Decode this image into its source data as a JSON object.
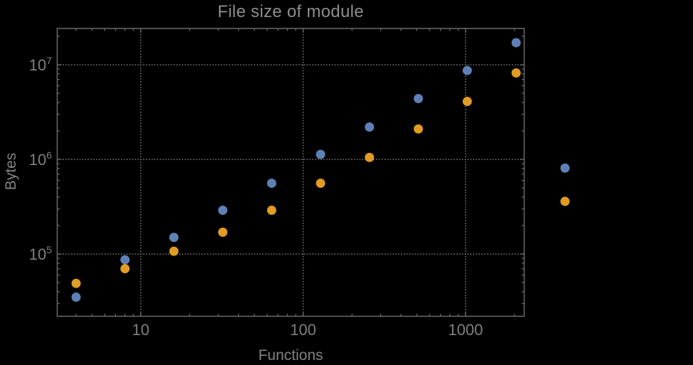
{
  "title": "File size of module",
  "colors": {
    "background": "#000000",
    "frame": "#6b6b6b",
    "grid": "#6b6b6b",
    "tick_text": "#7f7f7f",
    "series_blue": "#5e81b5",
    "series_orange": "#e19c24"
  },
  "chart_data": {
    "type": "scatter",
    "title": "File size of module",
    "xlabel": "Functions",
    "ylabel": "Bytes",
    "xscale": "log",
    "yscale": "log",
    "xlim": [
      3.06,
      2296
    ],
    "ylim": [
      22000,
      24200000
    ],
    "grid": "dotted gridlines at powers of ten, frame with inward ticks on all sides",
    "legend": "none",
    "clip_points_to_frame": false,
    "x_major_ticks": [
      10,
      100,
      1000
    ],
    "x_tick_labels": [
      "10",
      "100",
      "1000"
    ],
    "y_major_ticks": [
      100000,
      1000000,
      10000000
    ],
    "y_tick_labels": [
      {
        "base": "10",
        "exponent": "5"
      },
      {
        "base": "10",
        "exponent": "6"
      },
      {
        "base": "10",
        "exponent": "7"
      }
    ],
    "x": [
      4,
      8,
      16,
      32,
      64,
      128,
      256,
      512,
      1024,
      2048,
      4096
    ],
    "series": [
      {
        "name": "blue-series",
        "color": "#5e81b5",
        "values": [
          35000,
          87000,
          150000,
          290000,
          560000,
          1130000,
          2200000,
          4400000,
          8700000,
          17100000,
          810000
        ]
      },
      {
        "name": "orange-series",
        "color": "#e19c24",
        "values": [
          49000,
          70000,
          107000,
          170000,
          290000,
          560000,
          1050000,
          2100000,
          4100000,
          8200000,
          360000
        ]
      }
    ]
  }
}
